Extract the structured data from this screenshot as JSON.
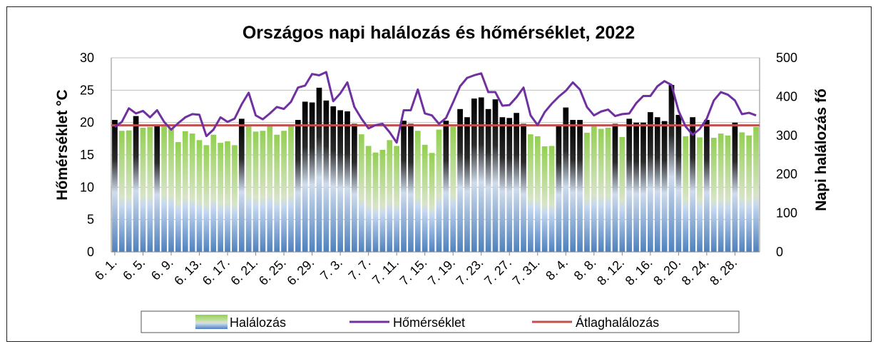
{
  "chart_data": {
    "type": "bar",
    "title": "Országos napi halálozás és hőmérséklet, 2022",
    "y_left_label": "Hőmérséklet °C",
    "y_right_label": "Napi halálozás fő",
    "y_left_ticks": [
      "0",
      "5",
      "10",
      "15",
      "20",
      "25",
      "30"
    ],
    "y_right_ticks": [
      "0",
      "100",
      "200",
      "300",
      "400",
      "500"
    ],
    "y_left_range": [
      0,
      30
    ],
    "y_right_range": [
      0,
      500
    ],
    "x_tick_labels": [
      "6. 1.",
      "6. 5.",
      "6. 9.",
      "6. 13.",
      "6. 17.",
      "6. 21.",
      "6. 25.",
      "6. 29.",
      "7. 3.",
      "7. 7.",
      "7. 11.",
      "7. 15.",
      "7. 19.",
      "7. 23.",
      "7. 27.",
      "7. 31.",
      "8. 4.",
      "8. 8.",
      "8. 12.",
      "8. 16.",
      "8. 20.",
      "8. 24.",
      "8. 28."
    ],
    "grid": "horizontal major gridlines",
    "legend_position": "bottom",
    "colors": {
      "bar_top": "#92d050",
      "bar_bottom": "#4f81bd",
      "bar_highlight_top": "#000000",
      "bar_highlight_bottom": "#4f81bd",
      "temperature_line": "#7030a0",
      "average_line": "#c0504d",
      "grid": "#bfbfbf"
    },
    "series": [
      {
        "name": "Halálozás",
        "type": "bar",
        "axis": "right",
        "values": [
          340,
          312,
          313,
          350,
          320,
          322,
          328,
          326,
          320,
          283,
          311,
          305,
          288,
          275,
          302,
          281,
          285,
          275,
          343,
          325,
          310,
          312,
          325,
          302,
          312,
          325,
          340,
          387,
          385,
          423,
          390,
          375,
          365,
          362,
          330,
          303,
          273,
          256,
          263,
          288,
          273,
          338,
          330,
          312,
          276,
          255,
          315,
          338,
          323,
          368,
          347,
          395,
          398,
          368,
          393,
          347,
          345,
          358,
          330,
          303,
          298,
          272,
          273,
          328,
          372,
          340,
          340,
          307,
          325,
          317,
          320,
          330,
          296,
          343,
          333,
          333,
          360,
          347,
          337,
          430,
          353,
          298,
          347,
          295,
          340,
          294,
          305,
          300,
          333,
          308,
          300,
          322
        ]
      },
      {
        "name": "Hőmérséklet",
        "type": "line",
        "axis": "left",
        "values": [
          19.3,
          20.1,
          22.2,
          21.4,
          21.8,
          20.8,
          21.9,
          20.1,
          18.9,
          19.9,
          20.8,
          21.3,
          21.2,
          17.9,
          18.9,
          20.8,
          20.1,
          20.6,
          22.8,
          24.6,
          21.1,
          20.5,
          21.4,
          22.4,
          22.1,
          23.2,
          25.4,
          25.7,
          27.5,
          27.3,
          27.8,
          23.3,
          24.5,
          26.2,
          22.4,
          20.6,
          19.1,
          19.6,
          19.8,
          18.5,
          16.9,
          21.9,
          21.9,
          25.1,
          21.4,
          21.1,
          19.8,
          20.7,
          23.1,
          25.6,
          26.9,
          27.3,
          27.6,
          24.7,
          24.7,
          22.6,
          22.7,
          23.9,
          25.4,
          21.1,
          19.6,
          21.6,
          22.9,
          24.0,
          24.9,
          26.2,
          25.1,
          22.4,
          21.1,
          21.7,
          22.0,
          21.0,
          21.3,
          21.4,
          23.0,
          24.1,
          24.1,
          25.6,
          26.4,
          25.8,
          21.8,
          19.4,
          18.1,
          19.0,
          20.6,
          23.4,
          24.7,
          24.3,
          23.4,
          21.3,
          21.5,
          21.1
        ]
      },
      {
        "name": "Átlaghalálozás",
        "type": "line",
        "axis": "right",
        "values": [
          326
        ]
      }
    ]
  }
}
